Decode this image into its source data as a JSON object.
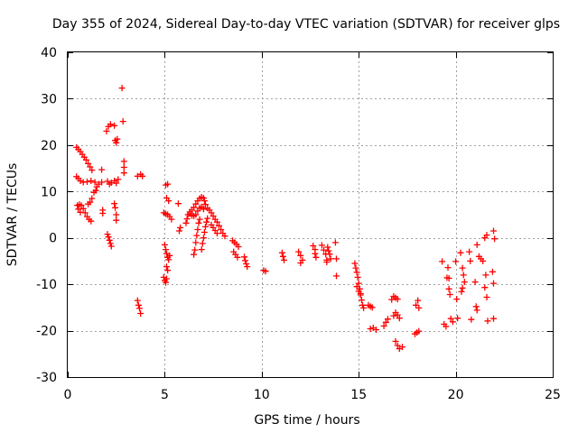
{
  "chart_data": {
    "type": "scatter",
    "title": "Day 355 of 2024, Sidereal Day-to-day VTEC variation (SDTVAR) for receiver glps",
    "xlabel": "GPS time / hours",
    "ylabel": "SDTVAR / TECUs",
    "xlim": [
      0,
      25
    ],
    "ylim": [
      -30,
      40
    ],
    "xticks": [
      0,
      5,
      10,
      15,
      20,
      25
    ],
    "yticks": [
      -30,
      -20,
      -10,
      0,
      10,
      20,
      30,
      40
    ],
    "grid": true,
    "marker": "+",
    "color": "#ff0000",
    "series": [
      {
        "name": "SDTVAR",
        "segments": [
          [
            [
              0.45,
              19.5
            ],
            [
              0.55,
              19.1
            ],
            [
              0.65,
              18.6
            ],
            [
              0.75,
              18.0
            ],
            [
              0.85,
              17.4
            ],
            [
              0.95,
              16.8
            ],
            [
              1.05,
              16.0
            ],
            [
              1.15,
              15.3
            ],
            [
              1.25,
              14.6
            ]
          ],
          [
            [
              0.45,
              13.2
            ],
            [
              0.55,
              12.8
            ],
            [
              0.65,
              12.3
            ],
            [
              0.8,
              12.0
            ],
            [
              1.0,
              12.1
            ],
            [
              1.2,
              12.3
            ],
            [
              1.4,
              12.0
            ],
            [
              1.6,
              11.6
            ]
          ],
          [
            [
              0.5,
              7.0
            ],
            [
              0.6,
              7.2
            ],
            [
              0.7,
              7.0
            ],
            [
              0.8,
              6.3
            ],
            [
              0.9,
              5.4
            ],
            [
              1.0,
              4.6
            ],
            [
              1.1,
              4.0
            ],
            [
              1.2,
              3.6
            ],
            [
              0.55,
              6.2
            ],
            [
              0.65,
              5.5
            ]
          ],
          [
            [
              1.05,
              7.3
            ],
            [
              1.15,
              7.7
            ],
            [
              1.25,
              8.5
            ],
            [
              1.35,
              9.8
            ],
            [
              1.45,
              10.2
            ],
            [
              1.5,
              11.0
            ]
          ],
          [
            [
              1.75,
              14.7
            ],
            [
              1.75,
              12.0
            ],
            [
              1.8,
              6.0
            ],
            [
              1.8,
              5.3
            ]
          ],
          [
            [
              2.0,
              23.0
            ],
            [
              2.1,
              24.0
            ],
            [
              2.2,
              24.5
            ]
          ],
          [
            [
              2.05,
              12.2
            ],
            [
              2.15,
              11.6
            ],
            [
              2.25,
              11.9
            ]
          ],
          [
            [
              2.05,
              0.8
            ],
            [
              2.1,
              0.2
            ],
            [
              2.15,
              -0.5
            ],
            [
              2.2,
              -1.2
            ],
            [
              2.25,
              -1.8
            ]
          ],
          [
            [
              2.4,
              24.2
            ],
            [
              2.45,
              21.0
            ],
            [
              2.5,
              20.5
            ],
            [
              2.55,
              21.3
            ]
          ],
          [
            [
              2.4,
              12.3
            ],
            [
              2.5,
              11.8
            ],
            [
              2.6,
              12.6
            ]
          ],
          [
            [
              2.4,
              7.4
            ],
            [
              2.45,
              6.5
            ],
            [
              2.5,
              5.0
            ],
            [
              2.5,
              3.8
            ]
          ],
          [
            [
              2.8,
              32.3
            ],
            [
              2.85,
              25.1
            ],
            [
              2.9,
              16.5
            ],
            [
              2.9,
              15.2
            ],
            [
              2.9,
              14.0
            ]
          ],
          [
            [
              3.6,
              13.3
            ],
            [
              3.75,
              13.7
            ],
            [
              3.85,
              13.3
            ]
          ],
          [
            [
              3.6,
              -13.5
            ],
            [
              3.65,
              -14.5
            ],
            [
              3.7,
              -15.2
            ],
            [
              3.75,
              -16.3
            ]
          ],
          [
            [
              5.05,
              11.4
            ],
            [
              5.15,
              11.6
            ],
            [
              5.1,
              8.6
            ],
            [
              5.2,
              8.0
            ]
          ],
          [
            [
              4.95,
              5.4
            ],
            [
              5.05,
              5.2
            ],
            [
              5.15,
              5.0
            ],
            [
              5.25,
              4.6
            ],
            [
              5.35,
              4.0
            ]
          ],
          [
            [
              5.0,
              -1.5
            ],
            [
              5.05,
              -2.5
            ],
            [
              5.1,
              -3.4
            ],
            [
              5.15,
              -4.2
            ],
            [
              5.2,
              -4.7
            ],
            [
              5.25,
              -3.8
            ]
          ],
          [
            [
              4.95,
              -8.5
            ],
            [
              5.0,
              -9.2
            ],
            [
              5.05,
              -9.6
            ],
            [
              5.1,
              -8.8
            ]
          ],
          [
            [
              5.1,
              -6.2
            ],
            [
              5.15,
              -7.0
            ]
          ],
          [
            [
              5.7,
              7.4
            ],
            [
              5.8,
              2.2
            ],
            [
              5.75,
              1.5
            ]
          ],
          [
            [
              6.1,
              3.2
            ],
            [
              6.15,
              4.1
            ],
            [
              6.2,
              5.0
            ],
            [
              6.3,
              5.6
            ],
            [
              6.4,
              6.0
            ],
            [
              6.5,
              6.6
            ],
            [
              6.6,
              7.3
            ],
            [
              6.7,
              8.0
            ],
            [
              6.8,
              8.5
            ],
            [
              6.9,
              8.8
            ],
            [
              7.0,
              8.6
            ],
            [
              7.05,
              8.0
            ],
            [
              7.1,
              7.2
            ]
          ],
          [
            [
              6.3,
              5.2
            ],
            [
              6.4,
              4.8
            ],
            [
              6.5,
              4.7
            ],
            [
              6.6,
              5.0
            ],
            [
              6.7,
              5.8
            ],
            [
              6.8,
              6.4
            ],
            [
              6.9,
              6.7
            ],
            [
              7.0,
              6.2
            ]
          ],
          [
            [
              6.5,
              -3.6
            ],
            [
              6.55,
              -2.6
            ],
            [
              6.6,
              -1.0
            ],
            [
              6.65,
              0.5
            ],
            [
              6.7,
              1.8
            ],
            [
              6.75,
              3.2
            ],
            [
              6.8,
              4.0
            ]
          ],
          [
            [
              6.9,
              -2.5
            ],
            [
              6.95,
              -1.2
            ],
            [
              7.0,
              0.0
            ],
            [
              7.05,
              1.2
            ],
            [
              7.1,
              2.4
            ],
            [
              7.15,
              3.4
            ],
            [
              7.2,
              4.2
            ]
          ],
          [
            [
              7.2,
              6.4
            ],
            [
              7.3,
              6.0
            ],
            [
              7.4,
              5.4
            ],
            [
              7.5,
              4.7
            ],
            [
              7.6,
              4.0
            ],
            [
              7.7,
              3.4
            ],
            [
              7.8,
              2.6
            ],
            [
              7.9,
              1.8
            ],
            [
              8.0,
              1.0
            ],
            [
              8.1,
              0.4
            ]
          ],
          [
            [
              7.4,
              2.8
            ],
            [
              7.5,
              2.2
            ],
            [
              7.6,
              1.6
            ],
            [
              7.7,
              1.0
            ]
          ],
          [
            [
              8.5,
              -0.6
            ],
            [
              8.6,
              -1.0
            ],
            [
              8.7,
              -1.4
            ],
            [
              8.8,
              -1.9
            ]
          ],
          [
            [
              8.55,
              -3.0
            ],
            [
              8.65,
              -3.6
            ],
            [
              8.75,
              -4.2
            ]
          ],
          [
            [
              9.1,
              -4.1
            ],
            [
              9.15,
              -4.9
            ],
            [
              9.2,
              -5.6
            ],
            [
              9.25,
              -6.2
            ]
          ],
          [
            [
              10.1,
              -7.0
            ],
            [
              10.2,
              -7.2
            ]
          ],
          [
            [
              11.05,
              -3.2
            ],
            [
              11.1,
              -4.0
            ],
            [
              11.15,
              -4.8
            ]
          ],
          [
            [
              11.9,
              -3.0
            ],
            [
              12.0,
              -3.8
            ],
            [
              12.1,
              -4.8
            ],
            [
              12.0,
              -5.4
            ]
          ],
          [
            [
              12.65,
              -1.7
            ],
            [
              12.75,
              -2.5
            ],
            [
              12.75,
              -3.4
            ],
            [
              12.8,
              -4.2
            ]
          ],
          [
            [
              13.1,
              -1.6
            ],
            [
              13.2,
              -2.6
            ],
            [
              13.3,
              -3.5
            ],
            [
              13.35,
              -4.8
            ],
            [
              13.35,
              -5.2
            ]
          ],
          [
            [
              13.4,
              -2.0
            ],
            [
              13.45,
              -2.8
            ],
            [
              13.5,
              -3.5
            ],
            [
              13.55,
              -4.5
            ]
          ],
          [
            [
              13.8,
              -1.0
            ],
            [
              13.85,
              -4.5
            ],
            [
              13.85,
              -8.2
            ]
          ],
          [
            [
              14.8,
              -5.5
            ],
            [
              14.85,
              -6.5
            ],
            [
              14.9,
              -7.4
            ],
            [
              14.95,
              -8.5
            ],
            [
              15.0,
              -9.8
            ],
            [
              15.05,
              -11.0
            ],
            [
              15.1,
              -12.3
            ],
            [
              15.15,
              -13.4
            ],
            [
              15.2,
              -14.5
            ],
            [
              15.25,
              -15.1
            ]
          ],
          [
            [
              14.9,
              -10.5
            ],
            [
              15.0,
              -11.5
            ],
            [
              15.1,
              -12.0
            ]
          ],
          [
            [
              15.5,
              -14.5
            ],
            [
              15.6,
              -14.8
            ],
            [
              15.7,
              -15.0
            ]
          ],
          [
            [
              15.6,
              -19.6
            ],
            [
              15.75,
              -19.4
            ],
            [
              15.9,
              -19.8
            ]
          ],
          [
            [
              16.3,
              -19.0
            ],
            [
              16.4,
              -18.2
            ],
            [
              16.5,
              -17.5
            ]
          ],
          [
            [
              16.7,
              -13.3
            ],
            [
              16.8,
              -12.6
            ],
            [
              16.9,
              -12.9
            ],
            [
              17.0,
              -13.2
            ]
          ],
          [
            [
              16.8,
              -16.8
            ],
            [
              16.9,
              -16.1
            ],
            [
              17.0,
              -16.6
            ],
            [
              17.1,
              -17.3
            ]
          ],
          [
            [
              16.9,
              -22.3
            ],
            [
              17.0,
              -23.2
            ],
            [
              17.1,
              -23.9
            ],
            [
              17.25,
              -23.5
            ]
          ],
          [
            [
              17.95,
              -14.5
            ],
            [
              18.05,
              -13.5
            ],
            [
              18.1,
              -15.1
            ]
          ],
          [
            [
              17.9,
              -20.7
            ],
            [
              18.0,
              -20.4
            ],
            [
              18.1,
              -20.1
            ]
          ],
          [
            [
              19.3,
              -5.1
            ],
            [
              19.4,
              -18.6
            ],
            [
              19.5,
              -19.1
            ]
          ],
          [
            [
              19.55,
              -8.6
            ],
            [
              19.6,
              -6.4
            ],
            [
              19.65,
              -8.7
            ]
          ],
          [
            [
              19.65,
              -11.0
            ],
            [
              19.7,
              -12.2
            ]
          ],
          [
            [
              19.75,
              -17.4
            ],
            [
              19.85,
              -18.1
            ]
          ],
          [
            [
              20.0,
              -5.1
            ],
            [
              20.05,
              -13.2
            ],
            [
              20.1,
              -17.3
            ]
          ],
          [
            [
              20.25,
              -3.2
            ],
            [
              20.35,
              -6.5
            ],
            [
              20.4,
              -8.0
            ],
            [
              20.45,
              -9.5
            ],
            [
              20.35,
              -10.8
            ],
            [
              20.3,
              -11.6
            ]
          ],
          [
            [
              20.7,
              -3.0
            ],
            [
              20.75,
              -5.0
            ],
            [
              20.8,
              -17.6
            ]
          ],
          [
            [
              21.0,
              -9.5
            ],
            [
              21.05,
              -14.8
            ],
            [
              21.1,
              -15.6
            ]
          ],
          [
            [
              21.1,
              -1.5
            ],
            [
              21.2,
              -4.0
            ],
            [
              21.3,
              -4.5
            ]
          ],
          [
            [
              21.4,
              -5.0
            ],
            [
              21.5,
              -10.7
            ],
            [
              21.6,
              -12.8
            ],
            [
              21.65,
              -17.9
            ],
            [
              21.55,
              -8.0
            ]
          ],
          [
            [
              21.5,
              0.0
            ],
            [
              21.6,
              0.6
            ]
          ],
          [
            [
              21.9,
              -7.3
            ],
            [
              21.95,
              -9.8
            ],
            [
              21.95,
              1.5
            ],
            [
              22.0,
              -0.2
            ],
            [
              21.95,
              -17.4
            ]
          ]
        ]
      }
    ]
  }
}
